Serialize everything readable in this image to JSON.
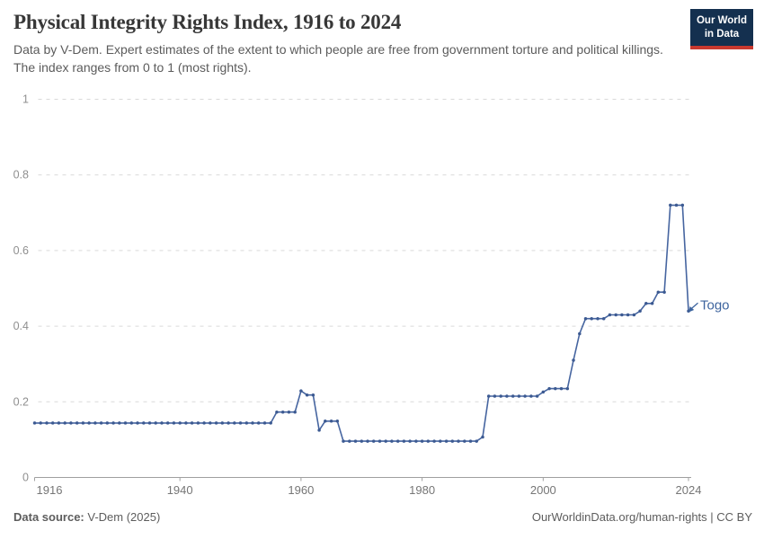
{
  "header": {
    "title": "Physical Integrity Rights Index, 1916 to 2024",
    "subtitle": "Data by V-Dem. Expert estimates of the extent to which people are free from government torture and political killings. The index ranges from 0 to 1 (most rights)."
  },
  "logo": {
    "line1": "Our World",
    "line2": "in Data",
    "bg_color": "#14304f",
    "accent_color": "#c9392f"
  },
  "chart_data": {
    "type": "line",
    "title": "Physical Integrity Rights Index, 1916 to 2024",
    "xlabel": "",
    "ylabel": "",
    "xlim": [
      1916,
      2024
    ],
    "ylim": [
      0,
      1
    ],
    "x_ticks": [
      1916,
      1940,
      1960,
      1980,
      2000,
      2024
    ],
    "y_ticks": [
      0,
      0.2,
      0.4,
      0.6,
      0.8,
      1
    ],
    "grid": "dashed-horizontal",
    "legend": "end-of-line-label",
    "line_color": "#4665a0",
    "marker_color": "#3c5a92",
    "label_color": "#3d649e",
    "axis_color": "#8f8f8f",
    "grid_color": "#d9d9d9",
    "series": [
      {
        "name": "Togo",
        "x_start": 1916,
        "x_step": 1,
        "values": [
          0.144,
          0.144,
          0.144,
          0.144,
          0.144,
          0.144,
          0.144,
          0.144,
          0.144,
          0.144,
          0.144,
          0.144,
          0.144,
          0.144,
          0.144,
          0.144,
          0.144,
          0.144,
          0.144,
          0.144,
          0.144,
          0.144,
          0.144,
          0.144,
          0.144,
          0.144,
          0.144,
          0.144,
          0.144,
          0.144,
          0.144,
          0.144,
          0.144,
          0.144,
          0.144,
          0.144,
          0.144,
          0.144,
          0.144,
          0.144,
          0.173,
          0.173,
          0.173,
          0.173,
          0.229,
          0.218,
          0.218,
          0.125,
          0.149,
          0.149,
          0.149,
          0.096,
          0.096,
          0.096,
          0.096,
          0.096,
          0.096,
          0.096,
          0.096,
          0.096,
          0.096,
          0.096,
          0.096,
          0.096,
          0.096,
          0.096,
          0.096,
          0.096,
          0.096,
          0.096,
          0.096,
          0.096,
          0.096,
          0.096,
          0.107,
          0.215,
          0.215,
          0.215,
          0.215,
          0.215,
          0.215,
          0.215,
          0.215,
          0.215,
          0.226,
          0.235,
          0.235,
          0.235,
          0.235,
          0.31,
          0.38,
          0.42,
          0.42,
          0.42,
          0.42,
          0.43,
          0.43,
          0.43,
          0.43,
          0.43,
          0.44,
          0.46,
          0.46,
          0.49,
          0.49,
          0.72,
          0.72,
          0.72,
          0.44
        ]
      }
    ]
  },
  "footer": {
    "source_label": "Data source:",
    "source_value": " V-Dem (2025)",
    "right": "OurWorldinData.org/human-rights | CC BY"
  }
}
